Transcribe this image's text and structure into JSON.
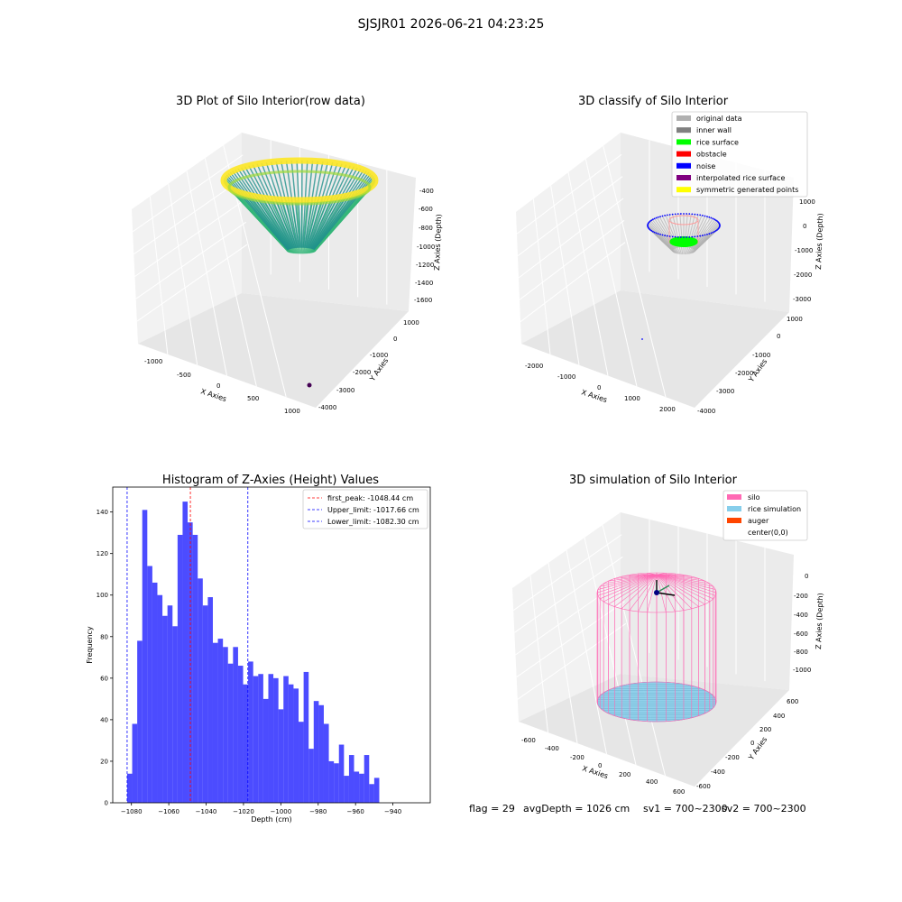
{
  "suptitle": "SJSJR01 2026-06-21 04:23:25",
  "chart_data": [
    {
      "type": "scatter",
      "title": "3D Plot of Silo Interior(row data)",
      "xlabel": "X Axies",
      "ylabel": "Y Axies",
      "zlabel": "Z Axies (Depth)",
      "x_ticks": [
        "-1000",
        "-500",
        "0",
        "500",
        "1000"
      ],
      "y_ticks": [
        "1000",
        "0",
        "-1000",
        "-2000",
        "-3000",
        "-4000"
      ],
      "z_ticks": [
        "-400",
        "-600",
        "-800",
        "-1000",
        "-1200",
        "-1400",
        "-1600"
      ],
      "colors": {
        "top": "#fde725",
        "mid": "#35b779",
        "bottom": "#21918c",
        "outlier": "#440154"
      }
    },
    {
      "type": "scatter",
      "title": "3D classify of Silo Interior",
      "xlabel": "X Axies",
      "ylabel": "Y Axies",
      "zlabel": "Z Axies (Depth)",
      "x_ticks": [
        "-2000",
        "-1000",
        "0",
        "1000",
        "2000"
      ],
      "y_ticks": [
        "1000",
        "0",
        "-1000",
        "-2000",
        "-3000",
        "-4000"
      ],
      "z_ticks": [
        "1000",
        "0",
        "-1000",
        "-2000",
        "-3000"
      ],
      "legend": [
        {
          "label": "original data",
          "color": "#b0b0b0"
        },
        {
          "label": "inner wall",
          "color": "#808080"
        },
        {
          "label": "rice surface",
          "color": "#00ff00"
        },
        {
          "label": "obstacle",
          "color": "#ff0000"
        },
        {
          "label": "noise",
          "color": "#0000ff"
        },
        {
          "label": "interpolated rice surface",
          "color": "#800080"
        },
        {
          "label": "symmetric generated points",
          "color": "#ffff00"
        }
      ]
    },
    {
      "type": "bar",
      "title": "Histogram of Z-Axies (Height) Values",
      "xlabel": "Depth (cm)",
      "ylabel": "Frequency",
      "xlim": [
        -1090,
        -920
      ],
      "ylim": [
        0,
        152
      ],
      "bin_start": -1082.3,
      "bin_width": 2.7,
      "values": [
        14,
        38,
        78,
        141,
        114,
        106,
        100,
        90,
        95,
        85,
        129,
        145,
        135,
        129,
        108,
        95,
        99,
        77,
        79,
        75,
        67,
        75,
        66,
        57,
        68,
        61,
        62,
        50,
        62,
        60,
        45,
        61,
        57,
        55,
        39,
        63,
        26,
        49,
        47,
        38,
        20,
        19,
        28,
        13,
        23,
        15,
        14,
        23,
        9,
        12
      ],
      "x_ticks": [
        -1080,
        -1060,
        -1040,
        -1020,
        -1000,
        -980,
        -960,
        -940
      ],
      "y_ticks": [
        0,
        20,
        40,
        60,
        80,
        100,
        120,
        140
      ],
      "bar_color": "#0000ff",
      "vlines": [
        {
          "label": "first_peak: -1048.44 cm",
          "value": -1048.44,
          "color": "#ff0000"
        },
        {
          "label": "Upper_limit: -1017.66 cm",
          "value": -1017.66,
          "color": "#0000ff"
        },
        {
          "label": "Lower_limit: -1082.30 cm",
          "value": -1082.3,
          "color": "#0000ff"
        }
      ]
    },
    {
      "type": "scatter",
      "title": "3D simulation of Silo Interior",
      "xlabel": "X Axies",
      "ylabel": "Y Axies",
      "zlabel": "Z Axies (Depth)",
      "x_ticks": [
        "-600",
        "-400",
        "-200",
        "0",
        "200",
        "400",
        "600"
      ],
      "y_ticks": [
        "600",
        "400",
        "200",
        "0",
        "-200",
        "-400",
        "-600"
      ],
      "z_ticks": [
        "0",
        "-200",
        "-400",
        "-600",
        "-800",
        "-1000"
      ],
      "legend": [
        {
          "label": "silo",
          "color": "#ff69b4"
        },
        {
          "label": "rice simulation",
          "color": "#87ceeb"
        },
        {
          "label": "auger",
          "color": "#ff4500"
        },
        {
          "label": "center(0,0)",
          "color": "#ffffff"
        }
      ]
    }
  ],
  "footer": {
    "flag": "flag = 29",
    "avg": "avgDepth = 1026 cm",
    "sv1": "sv1 = 700~2300",
    "sv2": "sv2 = 700~2300"
  }
}
